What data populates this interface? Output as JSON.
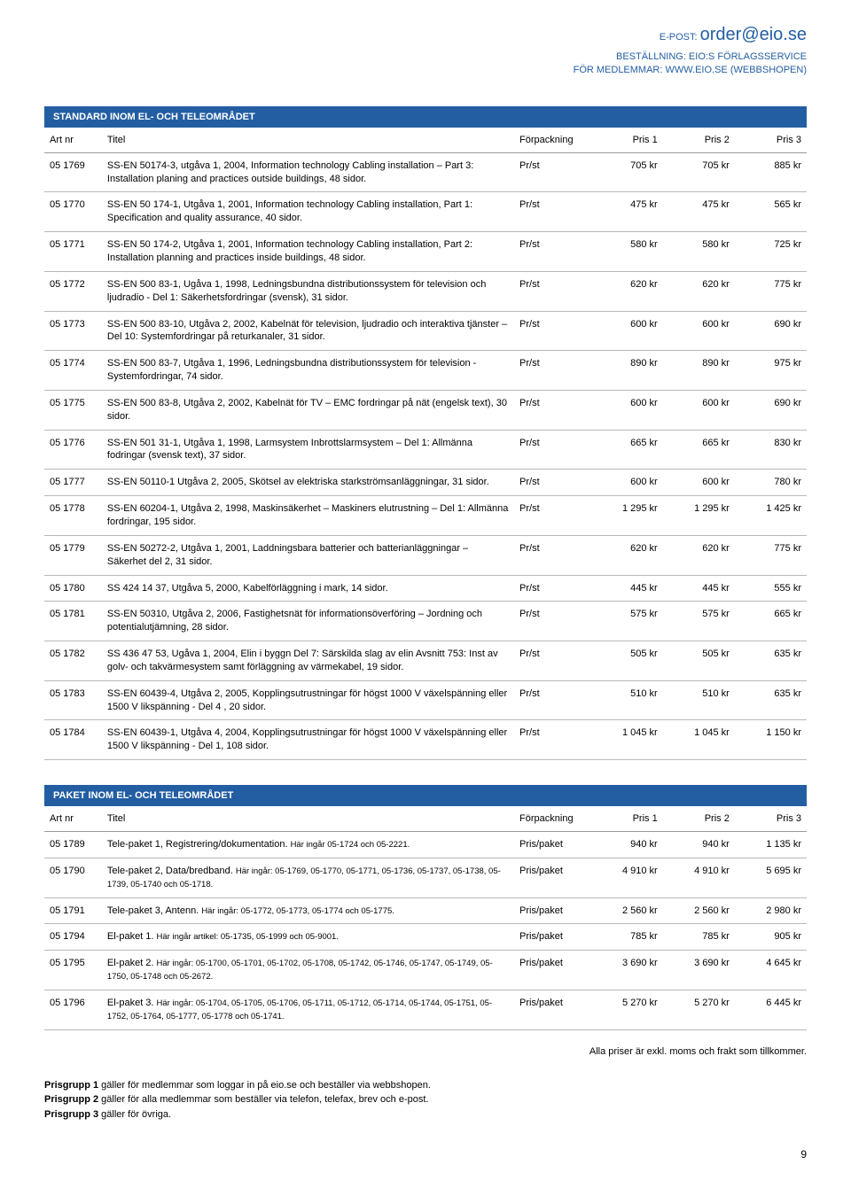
{
  "header": {
    "epost_label": "E-POST:",
    "epost_value": "order@eio.se",
    "line1": "BESTÄLLNING: EIO:S FÖRLAGSSERVICE",
    "line2": "FÖR MEDLEMMAR: WWW.EIO.SE (WEBBSHOPEN)"
  },
  "section1": {
    "title": "STANDARD INOM EL- OCH TELEOMRÅDET",
    "columns": {
      "art": "Art nr",
      "titel": "Titel",
      "forp": "Förpackning",
      "p1": "Pris 1",
      "p2": "Pris 2",
      "p3": "Pris 3"
    },
    "rows": [
      {
        "art": "05 1769",
        "titel": "SS-EN 50174-3, utgåva 1, 2004, Information technology Cabling installation – Part 3: Installation planing and practices outside buildings, 48 sidor.",
        "forp": "Pr/st",
        "p1": "705 kr",
        "p2": "705 kr",
        "p3": "885 kr"
      },
      {
        "art": "05 1770",
        "titel": "SS-EN 50 174-1, Utgåva 1, 2001, Information technology Cabling installation, Part 1: Specification and quality assurance, 40 sidor.",
        "forp": "Pr/st",
        "p1": "475 kr",
        "p2": "475 kr",
        "p3": "565 kr"
      },
      {
        "art": "05 1771",
        "titel": "SS-EN 50 174-2, Utgåva 1, 2001, Information technology Cabling installation, Part 2: Installation planning and practices inside buildings, 48 sidor.",
        "forp": "Pr/st",
        "p1": "580 kr",
        "p2": "580 kr",
        "p3": "725 kr"
      },
      {
        "art": "05 1772",
        "titel": "SS-EN 500 83-1, Ugåva 1, 1998, Ledningsbundna distributionssystem för television och ljudradio - Del 1: Säkerhetsfordringar (svensk), 31 sidor.",
        "forp": "Pr/st",
        "p1": "620 kr",
        "p2": "620 kr",
        "p3": "775 kr"
      },
      {
        "art": "05 1773",
        "titel": "SS-EN 500 83-10, Utgåva 2, 2002, Kabelnät för television, ljudradio och interaktiva tjänster – Del 10: Systemfordringar på returkanaler, 31 sidor.",
        "forp": "Pr/st",
        "p1": "600 kr",
        "p2": "600 kr",
        "p3": "690 kr"
      },
      {
        "art": "05 1774",
        "titel": "SS-EN 500 83-7, Utgåva 1, 1996, Ledningsbundna distributionssystem för television -Systemfordringar, 74 sidor.",
        "forp": "Pr/st",
        "p1": "890 kr",
        "p2": "890 kr",
        "p3": "975 kr"
      },
      {
        "art": "05 1775",
        "titel": "SS-EN 500 83-8, Utgåva 2, 2002, Kabelnät för TV – EMC fordringar på nät (engelsk text), 30 sidor.",
        "forp": "Pr/st",
        "p1": "600 kr",
        "p2": "600 kr",
        "p3": "690 kr"
      },
      {
        "art": "05 1776",
        "titel": "SS-EN 501 31-1, Utgåva 1, 1998, Larmsystem Inbrottslarmsystem – Del 1: Allmänna fodringar (svensk text), 37 sidor.",
        "forp": "Pr/st",
        "p1": "665 kr",
        "p2": "665 kr",
        "p3": "830 kr"
      },
      {
        "art": "05 1777",
        "titel": "SS-EN 50110-1 Utgåva 2, 2005, Skötsel av elektriska starkströmsanläggningar, 31 sidor.",
        "forp": "Pr/st",
        "p1": "600 kr",
        "p2": "600 kr",
        "p3": "780 kr"
      },
      {
        "art": "05 1778",
        "titel": "SS-EN 60204-1, Utgåva 2, 1998, Maskinsäkerhet – Maskiners elutrustning – Del 1: Allmänna fordringar, 195 sidor.",
        "forp": "Pr/st",
        "p1": "1 295 kr",
        "p2": "1 295 kr",
        "p3": "1 425 kr"
      },
      {
        "art": "05 1779",
        "titel": "SS-EN 50272-2, Utgåva 1, 2001, Laddningsbara batterier och batterianläggningar – Säkerhet del 2, 31 sidor.",
        "forp": "Pr/st",
        "p1": "620 kr",
        "p2": "620 kr",
        "p3": "775 kr"
      },
      {
        "art": "05 1780",
        "titel": "SS 424 14 37, Utgåva 5, 2000, Kabelförläggning i mark, 14 sidor.",
        "forp": "Pr/st",
        "p1": "445 kr",
        "p2": "445 kr",
        "p3": "555 kr"
      },
      {
        "art": "05 1781",
        "titel": "SS-EN 50310, Utgåva 2, 2006, Fastighetsnät för informationsöverföring – Jordning och potentialutjämning, 28 sidor.",
        "forp": "Pr/st",
        "p1": "575 kr",
        "p2": "575 kr",
        "p3": "665 kr"
      },
      {
        "art": "05 1782",
        "titel": "SS 436 47 53, Ugåva 1, 2004, Elin i byggn Del 7: Särskilda slag av elin Avsnitt 753: Inst av golv- och takvärmesystem samt förläggning av värmekabel, 19 sidor.",
        "forp": "Pr/st",
        "p1": "505 kr",
        "p2": "505 kr",
        "p3": "635 kr"
      },
      {
        "art": "05 1783",
        "titel": "SS-EN 60439-4, Utgåva 2, 2005, Kopplingsutrustningar för högst 1000 V växelspänning eller 1500 V likspänning - Del 4 , 20 sidor.",
        "forp": "Pr/st",
        "p1": "510 kr",
        "p2": "510 kr",
        "p3": "635 kr"
      },
      {
        "art": "05 1784",
        "titel": "SS-EN 60439-1, Utgåva 4, 2004, Kopplingsutrustningar för högst 1000 V växelspänning eller 1500 V likspänning - Del 1, 108 sidor.",
        "forp": "Pr/st",
        "p1": "1 045 kr",
        "p2": "1 045 kr",
        "p3": "1 150 kr"
      }
    ]
  },
  "section2": {
    "title": "PAKET INOM EL- OCH TELEOMRÅDET",
    "columns": {
      "art": "Art nr",
      "titel": "Titel",
      "forp": "Förpackning",
      "p1": "Pris 1",
      "p2": "Pris 2",
      "p3": "Pris 3"
    },
    "rows": [
      {
        "art": "05 1789",
        "titel": "Tele-paket 1, Registrering/dokumentation.",
        "note": "Här ingår 05-1724 och 05-2221.",
        "forp": "Pris/paket",
        "p1": "940 kr",
        "p2": "940 kr",
        "p3": "1 135 kr"
      },
      {
        "art": "05 1790",
        "titel": "Tele-paket 2, Data/bredband.",
        "note": "Här ingår: 05-1769, 05-1770, 05-1771, 05-1736, 05-1737, 05-1738, 05-1739, 05-1740 och 05-1718.",
        "forp": "Pris/paket",
        "p1": "4 910 kr",
        "p2": "4 910 kr",
        "p3": "5 695 kr"
      },
      {
        "art": "05 1791",
        "titel": "Tele-paket 3, Antenn.",
        "note": "Här ingår: 05-1772, 05-1773, 05-1774 och 05-1775.",
        "forp": "Pris/paket",
        "p1": "2 560 kr",
        "p2": "2 560 kr",
        "p3": "2 980 kr"
      },
      {
        "art": "05 1794",
        "titel": "El-paket 1.",
        "note": "Här ingår artikel: 05-1735, 05-1999 och 05-9001.",
        "forp": "Pris/paket",
        "p1": "785 kr",
        "p2": "785 kr",
        "p3": "905 kr"
      },
      {
        "art": "05 1795",
        "titel": "El-paket 2.",
        "note": "Här ingår: 05-1700, 05-1701, 05-1702, 05-1708, 05-1742, 05-1746, 05-1747, 05-1749, 05-1750, 05-1748 och 05-2672.",
        "forp": "Pris/paket",
        "p1": "3 690 kr",
        "p2": "3 690 kr",
        "p3": "4 645 kr"
      },
      {
        "art": "05 1796",
        "titel": "El-paket 3.",
        "note": "Här ingår: 05-1704, 05-1705, 05-1706, 05-1711, 05-1712, 05-1714, 05-1744, 05-1751, 05-1752, 05-1764, 05-1777, 05-1778 och 05-1741.",
        "forp": "Pris/paket",
        "p1": "5 270 kr",
        "p2": "5 270 kr",
        "p3": "6 445 kr"
      }
    ]
  },
  "footer_note": "Alla priser är exkl. moms och frakt som tillkommer.",
  "prisgrupp": {
    "l1b": "Prisgrupp 1",
    "l1": " gäller för medlemmar som loggar in på eio.se och beställer via webbshopen.",
    "l2b": "Prisgrupp 2",
    "l2": " gäller för alla medlemmar som beställer via telefon, telefax, brev och e-post.",
    "l3b": "Prisgrupp 3",
    "l3": " gäller för övriga."
  },
  "page_number": "9"
}
